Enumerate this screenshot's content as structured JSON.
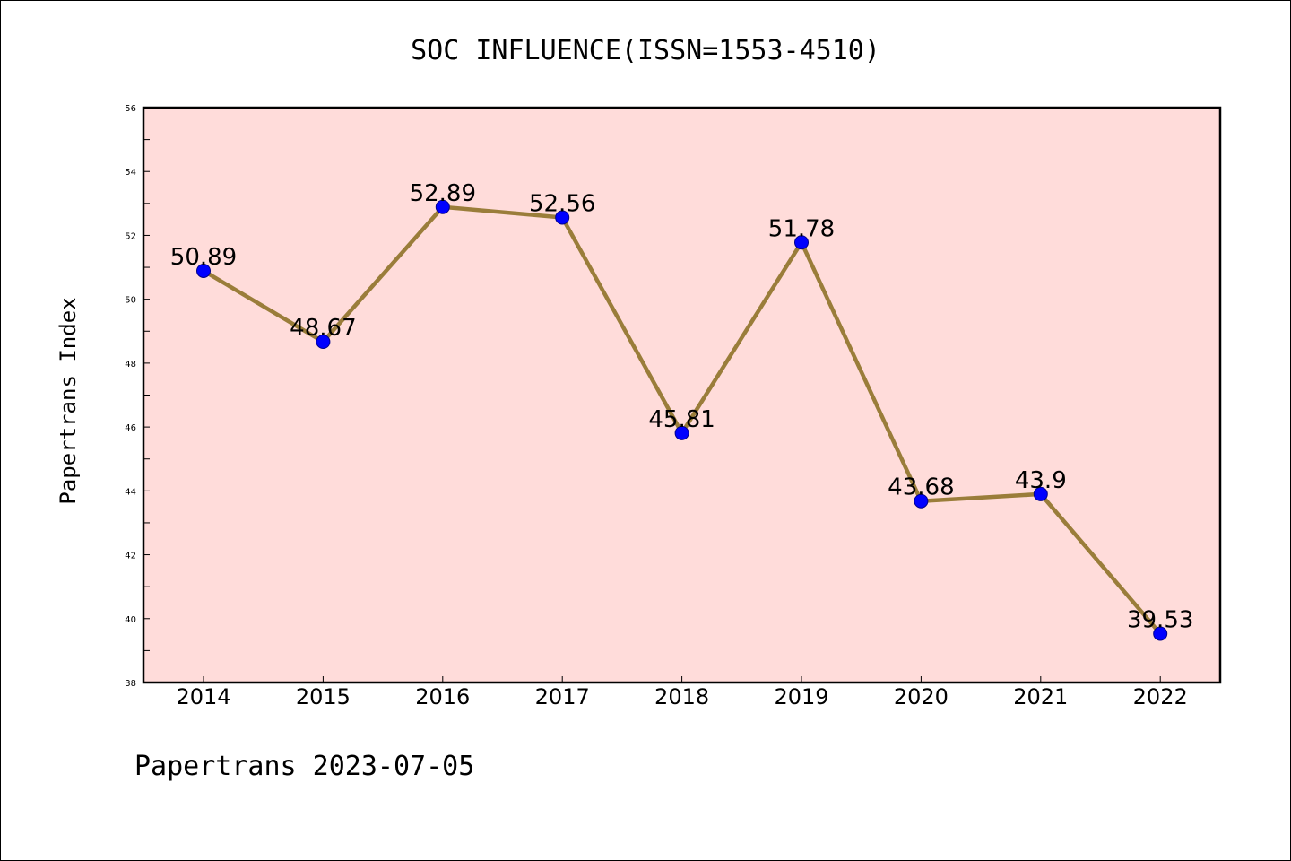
{
  "chart_data": {
    "type": "line",
    "title": "SOC INFLUENCE(ISSN=1553-4510)",
    "xlabel": "",
    "ylabel": "Papertrans Index",
    "categories": [
      "2014",
      "2015",
      "2016",
      "2017",
      "2018",
      "2019",
      "2020",
      "2021",
      "2022"
    ],
    "series": [
      {
        "values": [
          50.89,
          48.67,
          52.89,
          52.56,
          45.81,
          51.78,
          43.68,
          43.9,
          39.53
        ],
        "labels": [
          "50.89",
          "48.67",
          "52.89",
          "52.56",
          "45.81",
          "51.78",
          "43.68",
          "43.9",
          "39.53"
        ]
      }
    ],
    "ylim": [
      38,
      56
    ],
    "yticks": [
      "38",
      "40",
      "42",
      "44",
      "46",
      "48",
      "50",
      "52",
      "54",
      "56"
    ],
    "grid": false,
    "footer": "Papertrans 2023-07-05",
    "colors": {
      "plot_background": "#FFDCDA",
      "line": "#9A7D3A",
      "marker": "#0000FF"
    }
  }
}
